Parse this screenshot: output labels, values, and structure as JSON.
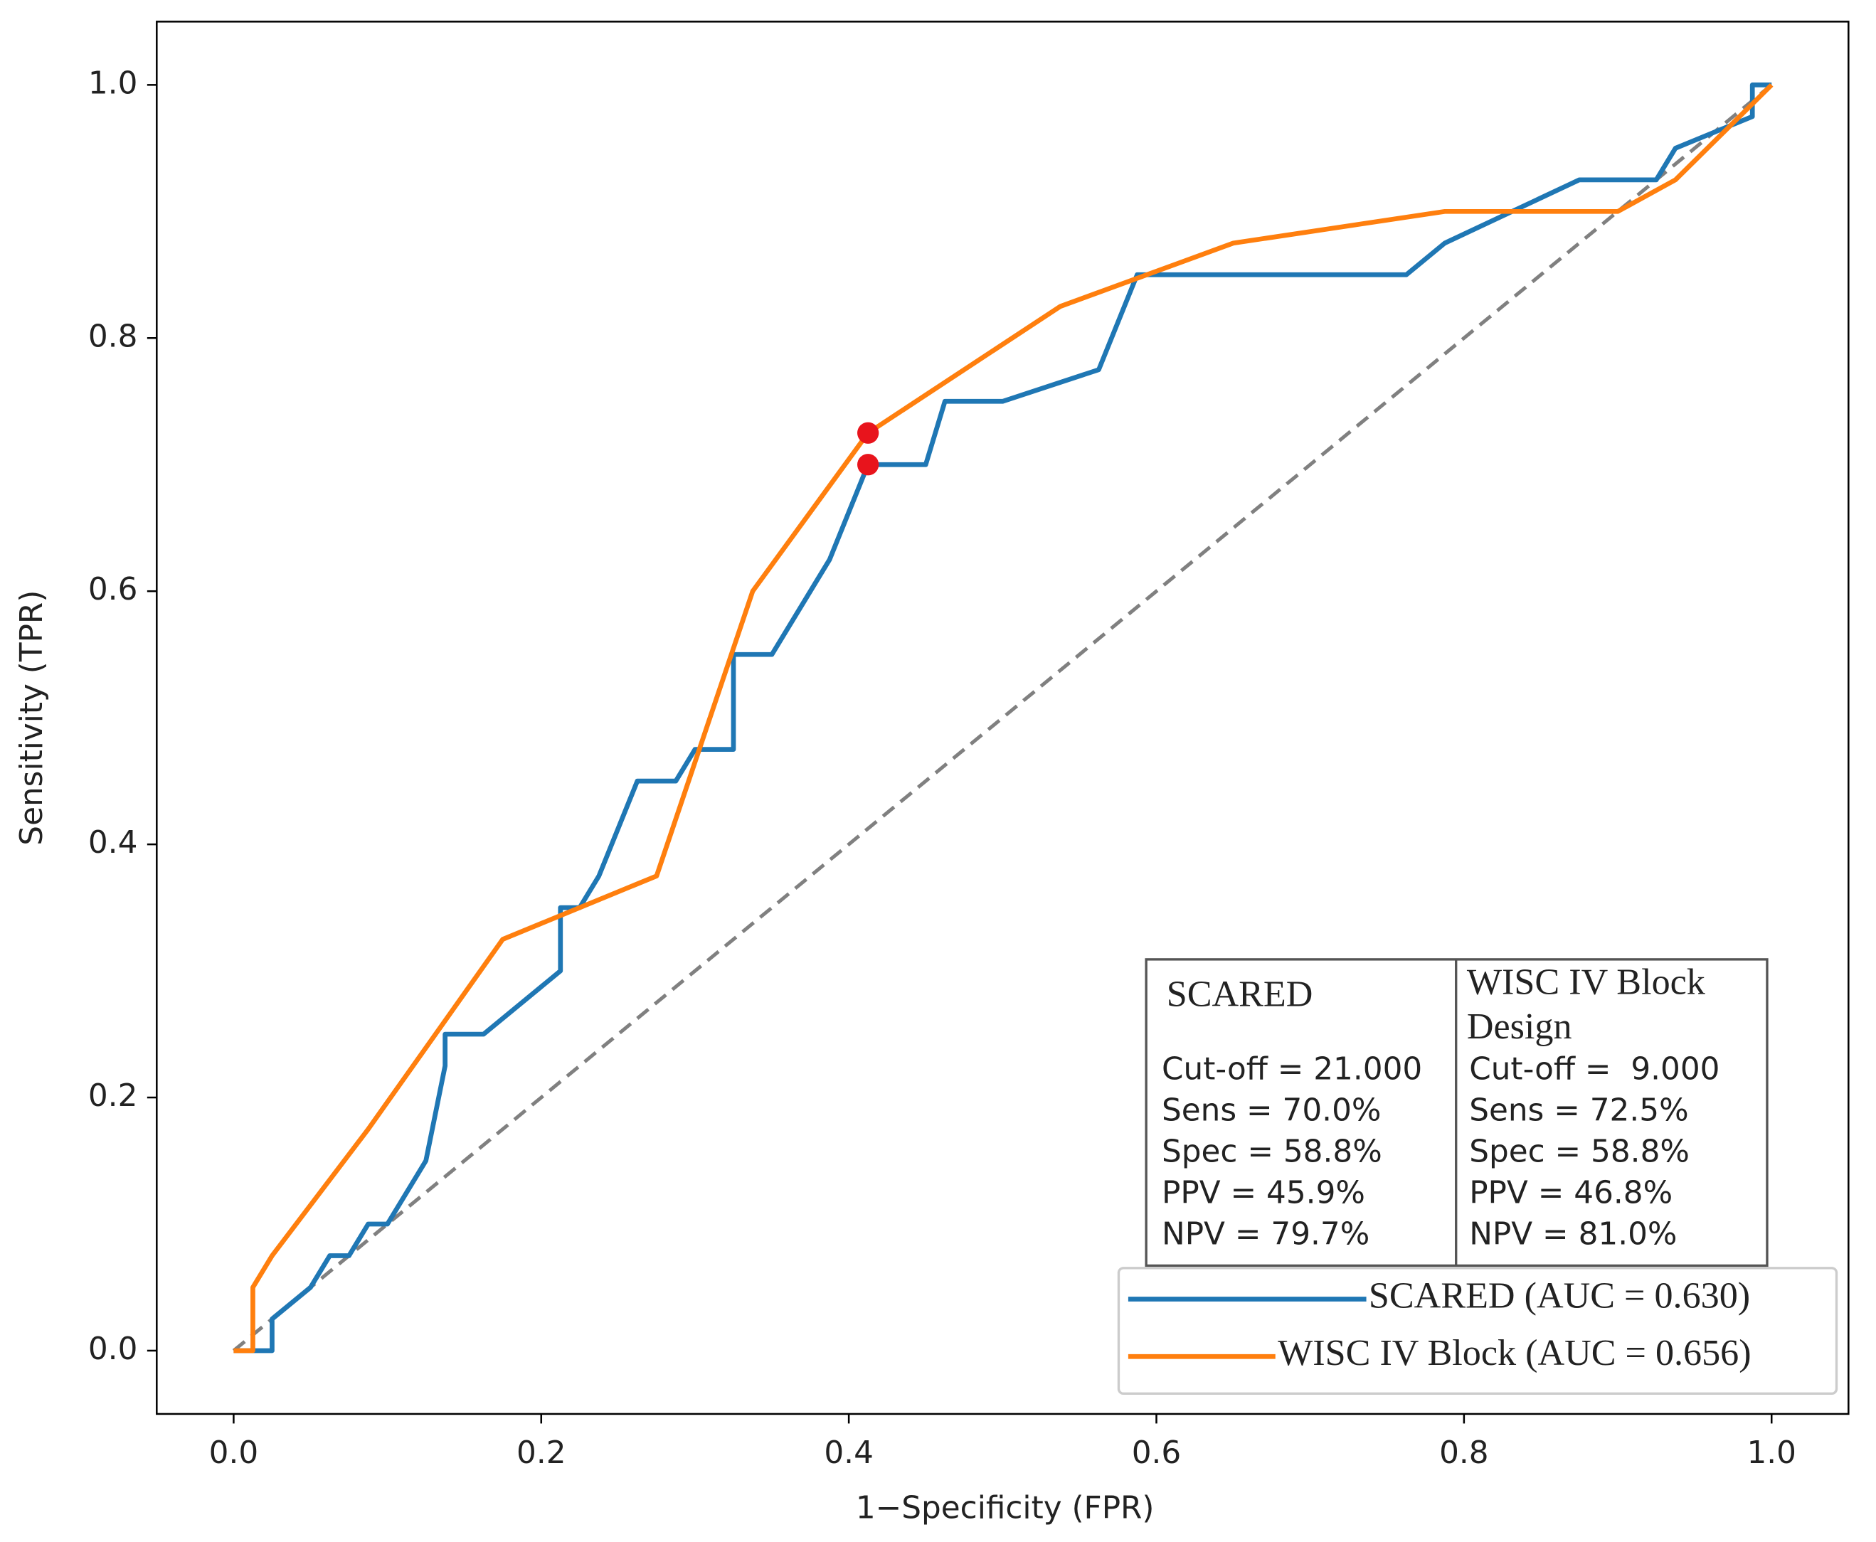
{
  "chart_data": {
    "type": "line",
    "x_label": "1−Specificity (FPR)",
    "y_label": "Sensitivity (TPR)",
    "xlim": [
      -0.05,
      1.05
    ],
    "ylim": [
      -0.05,
      1.05
    ],
    "xticks": [
      {
        "value": 0,
        "label": "0.0"
      },
      0.2,
      0.4,
      0.6,
      0.8,
      {
        "value": 1,
        "label": "1.0"
      }
    ],
    "yticks": [
      {
        "value": 0,
        "label": "0.0"
      },
      0.2,
      0.4,
      0.6,
      0.8,
      {
        "value": 1,
        "label": "1.0"
      }
    ],
    "series": [
      {
        "name": "SCARED (AUC = 0.630)",
        "color": "#1f77b4",
        "x": [
          0,
          0.025,
          0.025,
          0.05,
          0.0625,
          0.075,
          0.0875,
          0.1,
          0.125,
          0.1375,
          0.1375,
          0.1625,
          0.2125,
          0.2125,
          0.225,
          0.2375,
          0.2625,
          0.2875,
          0.3,
          0.325,
          0.325,
          0.35,
          0.3875,
          0.4125,
          0.45,
          0.4625,
          0.5,
          0.5625,
          0.5875,
          0.7625,
          0.7875,
          0.875,
          0.925,
          0.9375,
          0.9875,
          0.9875,
          1
        ],
        "values": [
          0,
          0,
          0.025,
          0.05,
          0.075,
          0.075,
          0.1,
          0.1,
          0.15,
          0.225,
          0.25,
          0.25,
          0.3,
          0.35,
          0.35,
          0.375,
          0.45,
          0.45,
          0.475,
          0.475,
          0.55,
          0.55,
          0.625,
          0.7,
          0.7,
          0.75,
          0.75,
          0.775,
          0.85,
          0.85,
          0.875,
          0.925,
          0.925,
          0.95,
          0.975,
          1,
          1
        ]
      },
      {
        "name": "WISC IV Block (AUC = 0.656)",
        "color": "#ff7f0e",
        "x": [
          0,
          0.0125,
          0.0125,
          0.025,
          0.0875,
          0.175,
          0.275,
          0.3375,
          0.4125,
          0.5375,
          0.65,
          0.7875,
          0.9,
          0.9375,
          1
        ],
        "values": [
          0,
          0,
          0.05,
          0.075,
          0.175,
          0.325,
          0.375,
          0.6,
          0.725,
          0.825,
          0.875,
          0.9,
          0.9,
          0.925,
          1
        ]
      }
    ],
    "diagonal": {
      "x": [
        0,
        1
      ],
      "values": [
        0,
        1
      ],
      "color": "#808080"
    },
    "cutoff_points": {
      "color": "#e8141c",
      "x": [
        0.4125,
        0.4125
      ],
      "values": [
        0.7,
        0.725
      ]
    },
    "annotation_table": {
      "columns": [
        {
          "title": "SCARED",
          "lines": [
            "Cut-off = 21.000",
            "Sens = 70.0%",
            "Spec = 58.8%",
            "PPV = 45.9%",
            "NPV = 79.7%"
          ]
        },
        {
          "title": "WISC IV Block Design",
          "lines": [
            "Cut-off =  9.000",
            "Sens = 72.5%",
            "Spec = 58.8%",
            "PPV = 46.8%",
            "NPV = 81.0%"
          ]
        }
      ]
    }
  }
}
